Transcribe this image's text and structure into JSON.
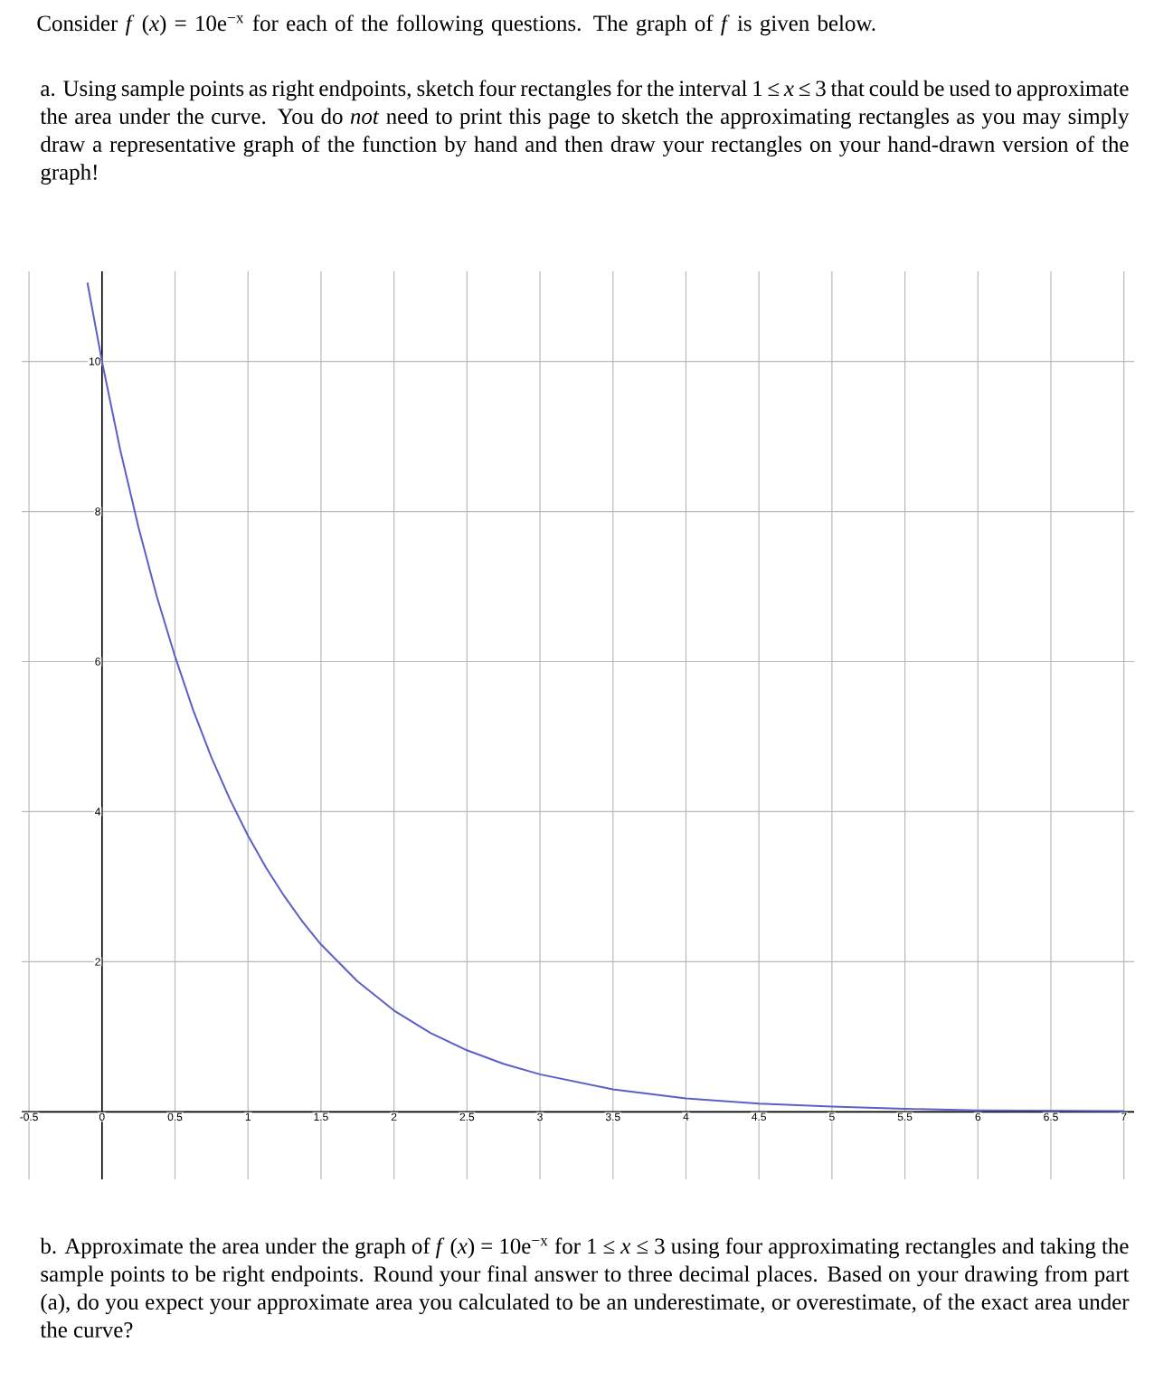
{
  "chart_data": {
    "type": "line",
    "title": "Consider *f* (*x*) = 10e$^{−x}$ for each of the following questions. The graph of *f* is given below.",
    "annotations": [
      "a.\tUsing sample points as right endpoints, sketch four rectangles for the interval 1 ≤ *x* ≤ 3 that could be used to approximate the area under the curve. You do *not* need to print this page to sketch the approximating rectangles as you may simply draw a representative graph of the function by hand and then draw your rectangles on your hand-drawn version of the graph!",
      "b.\tApproximate the area under the graph of *f* (*x*) = 10e$^{−x}$ for 1 ≤ *x* ≤ 3 using four approximating rectangles and taking the sample points to be right endpoints. Round your final answer to three decimal places. Based on your drawing from part (a), do you expect your approximate area you calculated to be an underestimate, or overestimate, of the exact area under the curve?"
    ],
    "x": [
      -0.1,
      0,
      0.125,
      0.25,
      0.375,
      0.5,
      0.625,
      0.75,
      0.875,
      1,
      1.125,
      1.25,
      1.375,
      1.5,
      1.75,
      2,
      2.25,
      2.5,
      2.75,
      3,
      3.5,
      4,
      4.5,
      5,
      5.5,
      6,
      7
    ],
    "series": [
      {
        "color": "#5b5fc7",
        "values": [
          11.05,
          10,
          8.82,
          7.79,
          6.87,
          6.07,
          5.35,
          4.72,
          4.17,
          3.68,
          3.25,
          2.87,
          2.53,
          2.23,
          1.74,
          1.35,
          1.05,
          0.82,
          0.64,
          0.5,
          0.3,
          0.18,
          0.11,
          0.07,
          0.04,
          0.02,
          0.01
        ]
      }
    ],
    "xlim": [
      -0.55,
      7.07
    ],
    "ylim": [
      -0.9,
      11.2
    ],
    "xticks": [
      -0.5,
      0,
      0.5,
      1,
      1.5,
      2,
      2.5,
      3,
      3.5,
      4,
      4.5,
      5,
      5.5,
      6,
      6.5,
      7
    ],
    "yticks": [
      2,
      4,
      6,
      8,
      10
    ],
    "grid": true
  }
}
